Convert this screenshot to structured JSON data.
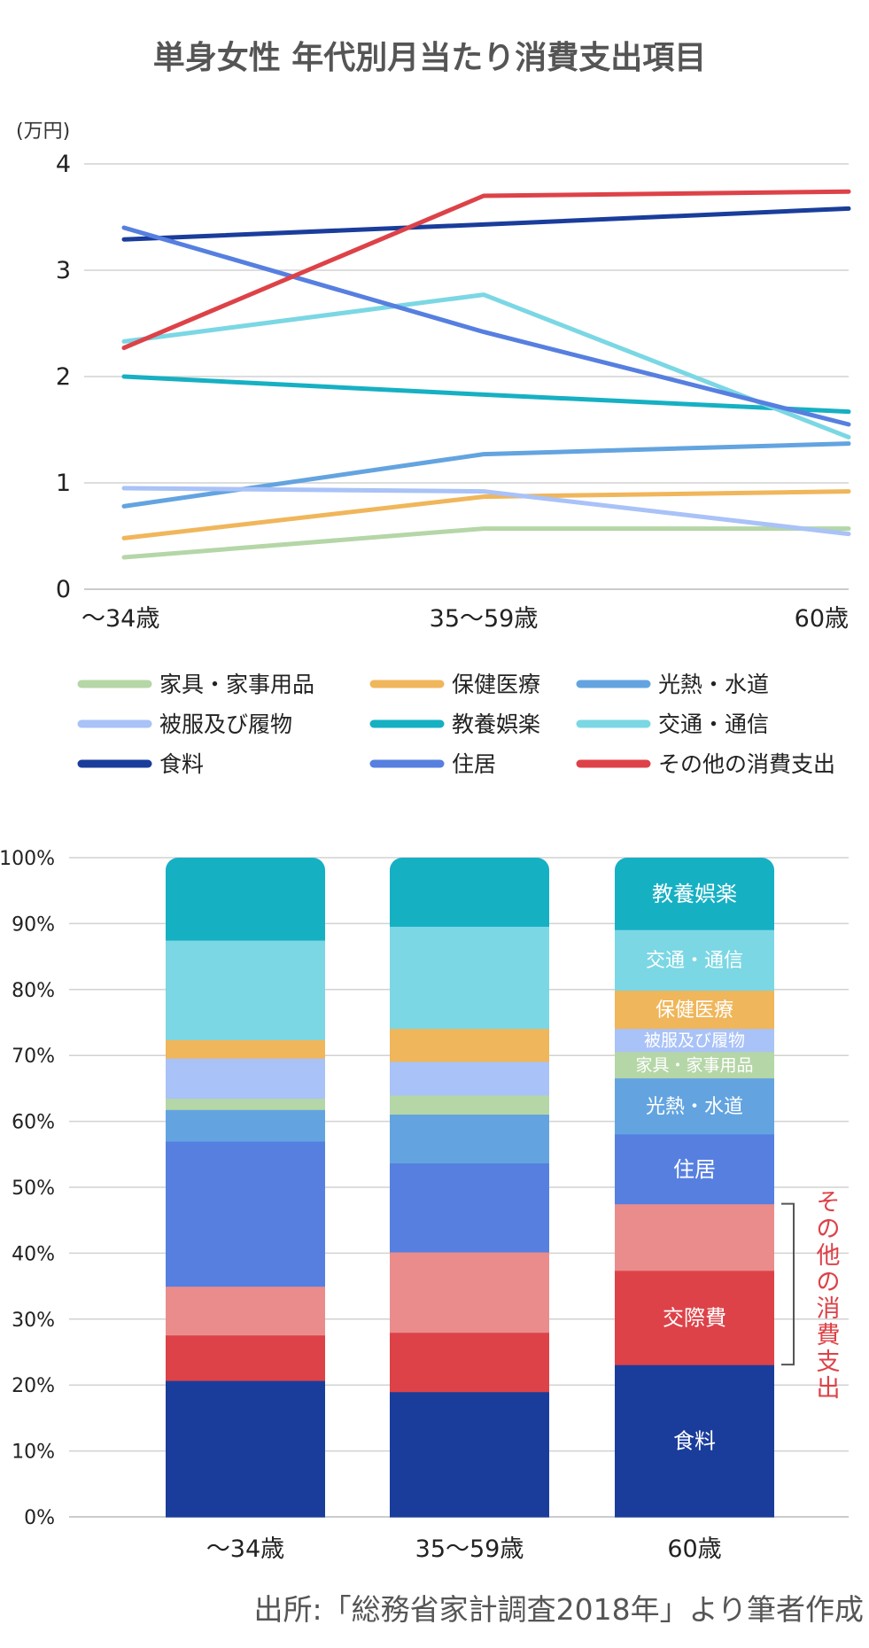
{
  "title": "単身女性 年代別月当たり消費支出項目",
  "source": "出所:「総務省家計調査2018年」より筆者作成",
  "chart_data": [
    {
      "type": "line",
      "unit_label": "(万円)",
      "categories": [
        "〜34歳",
        "35〜59歳",
        "60歳"
      ],
      "ylim": [
        0,
        4
      ],
      "yticks": [
        "0",
        "1",
        "2",
        "3",
        "4"
      ],
      "grid": true,
      "legend_position": "bottom",
      "series": [
        {
          "name": "家具・家事用品",
          "color": "#b5d6a7",
          "values": [
            0.3,
            0.57,
            0.57
          ]
        },
        {
          "name": "保健医療",
          "color": "#f0b65b",
          "values": [
            0.48,
            0.87,
            0.92
          ]
        },
        {
          "name": "光熱・水道",
          "color": "#63a4e0",
          "values": [
            0.78,
            1.27,
            1.37
          ]
        },
        {
          "name": "被服及び履物",
          "color": "#a9c2f7",
          "values": [
            0.95,
            0.92,
            0.52
          ]
        },
        {
          "name": "教養娯楽",
          "color": "#16b0c3",
          "values": [
            2.0,
            1.83,
            1.67
          ]
        },
        {
          "name": "交通・通信",
          "color": "#7bd7e4",
          "values": [
            2.33,
            2.77,
            1.43
          ]
        },
        {
          "name": "食料",
          "color": "#1a3d9b",
          "values": [
            3.29,
            3.43,
            3.58
          ]
        },
        {
          "name": "住居",
          "color": "#567fe0",
          "values": [
            3.4,
            2.42,
            1.55
          ]
        },
        {
          "name": "その他の消費支出",
          "color": "#dd4248",
          "values": [
            2.27,
            3.7,
            3.74
          ]
        }
      ]
    },
    {
      "type": "bar",
      "stacked": true,
      "normalized": true,
      "categories": [
        "〜34歳",
        "35〜59歳",
        "60歳"
      ],
      "ylim": [
        0,
        100
      ],
      "yticks": [
        "0%",
        "10%",
        "20%",
        "30%",
        "40%",
        "50%",
        "60%",
        "70%",
        "80%",
        "90%",
        "100%"
      ],
      "grid": true,
      "series": [
        {
          "key": "food",
          "color": "#1a3d9b",
          "values": [
            20.7,
            19.0,
            23.1
          ],
          "label": "食料"
        },
        {
          "key": "social",
          "color": "#dd4248",
          "values": [
            6.9,
            9.0,
            14.3
          ],
          "label": "交際費"
        },
        {
          "key": "other_misc",
          "color": "#ea8c8c",
          "values": [
            7.4,
            12.2,
            10.1
          ],
          "label": ""
        },
        {
          "key": "housing",
          "color": "#567fe0",
          "values": [
            22.0,
            13.5,
            10.6
          ],
          "label": "住居"
        },
        {
          "key": "utilities",
          "color": "#63a4e0",
          "values": [
            4.8,
            7.4,
            8.5
          ],
          "label": "光熱・水道"
        },
        {
          "key": "furniture",
          "color": "#b5d6a7",
          "values": [
            1.7,
            2.9,
            4.0
          ],
          "label": "家具・家事用品"
        },
        {
          "key": "clothing",
          "color": "#a9c2f7",
          "values": [
            6.1,
            5.1,
            3.5
          ],
          "label": "被服及び履物"
        },
        {
          "key": "health",
          "color": "#f0b65b",
          "values": [
            2.8,
            5.0,
            5.8
          ],
          "label": "保健医療"
        },
        {
          "key": "transport",
          "color": "#7bd7e4",
          "values": [
            15.1,
            15.5,
            9.2
          ],
          "label": "交通・通信"
        },
        {
          "key": "culture",
          "color": "#16b0c3",
          "values": [
            12.5,
            10.4,
            10.9
          ],
          "label": "教養娯楽"
        }
      ],
      "bracket_label": "その他の消費支出",
      "bracket_color": "#dd4248"
    }
  ]
}
